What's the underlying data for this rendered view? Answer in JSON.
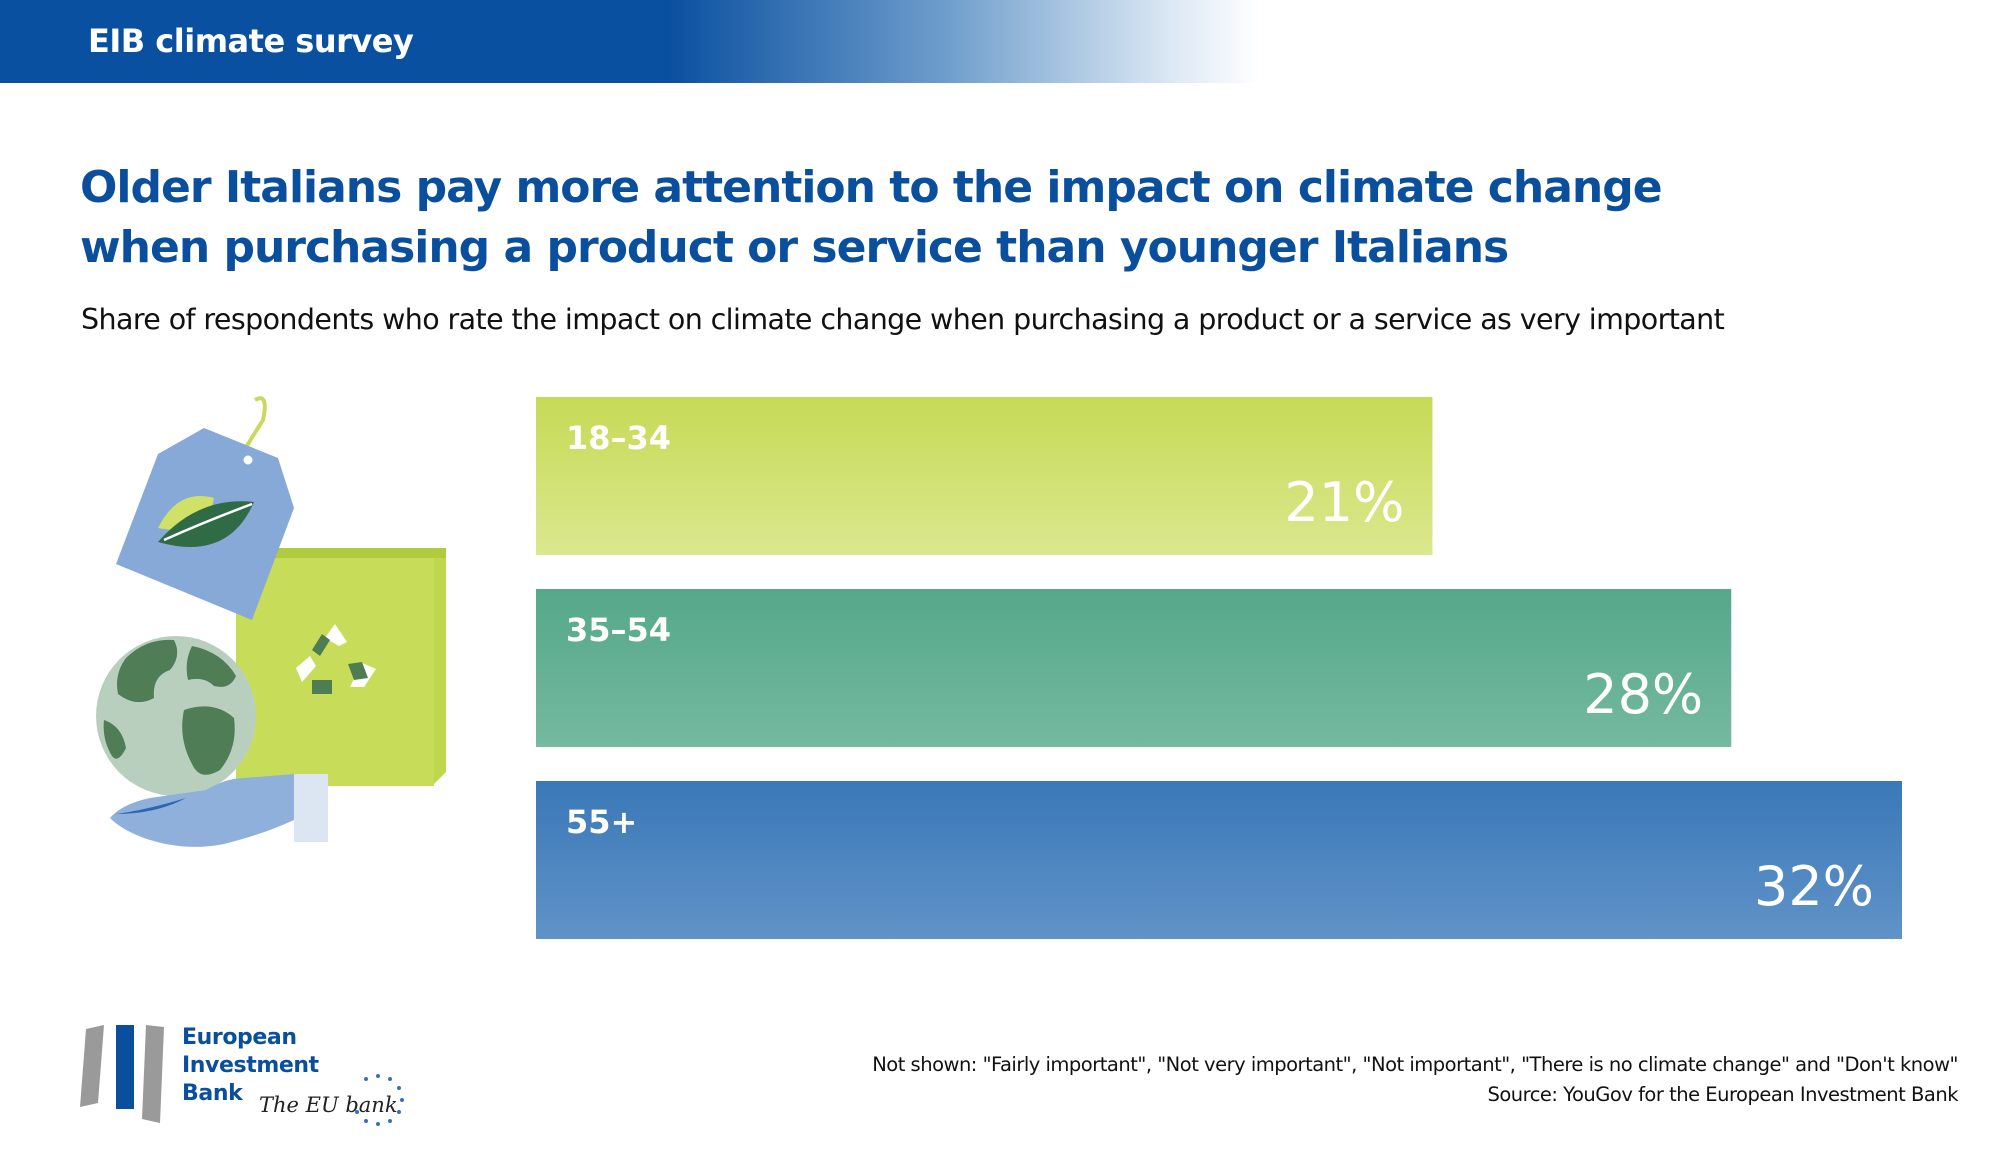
{
  "header": {
    "title": "EIB climate survey"
  },
  "headline": {
    "line1": "Older Italians pay more attention to the impact on climate change",
    "line2": "when purchasing a product or service than younger Italians"
  },
  "subtitle": "Share of respondents who rate the impact on climate change when purchasing a product or a service as very important",
  "chart_data": {
    "type": "bar",
    "orientation": "horizontal",
    "title": "Older Italians pay more attention to the impact on climate change when purchasing a product or service than younger Italians",
    "subtitle": "Share of respondents who rate the impact on climate change when purchasing a product or a service as very important",
    "categories": [
      "18–34",
      "35–54",
      "55+"
    ],
    "values": [
      21,
      28,
      32
    ],
    "value_labels": [
      "21%",
      "28%",
      "32%"
    ],
    "colors": [
      [
        "#c6da55",
        "#dbe88e"
      ],
      [
        "#55a889",
        "#74b9a0"
      ],
      [
        "#3a78b8",
        "#6093c7"
      ]
    ],
    "unit": "%",
    "xlim": [
      0,
      32
    ],
    "grid": false,
    "legend": "none",
    "xlabel": "",
    "ylabel": ""
  },
  "footer": {
    "note": "Not shown: \"Fairly important\", \"Not very important\", \"Not important\", \"There is no climate change\" and \"Don't know\"",
    "source": "Source: YouGov for the European Investment Bank"
  },
  "logo": {
    "line1": "European",
    "line2": "Investment",
    "line3": "Bank",
    "tagline": "The EU bank"
  },
  "colors": {
    "brand_blue": "#0a4f9e",
    "header_blue": "#0a50a0",
    "bar_label": "#ffffff"
  }
}
